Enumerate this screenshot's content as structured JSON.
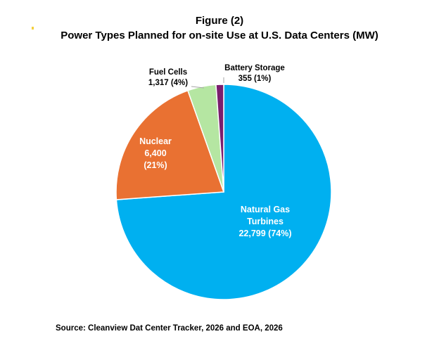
{
  "title_line1": "Figure (2)",
  "title_line2": "Power Types Planned for on-site Use at U.S. Data Centers (MW)",
  "source": "Source: Cleanview Dat Center Tracker, 2026 and EOA, 2026",
  "chart_data": {
    "type": "pie",
    "title": "Power Types Planned for on-site Use at U.S. Data Centers (MW)",
    "unit": "MW",
    "slices": [
      {
        "name": "Natural Gas Turbines",
        "value": 22799,
        "percent": 74,
        "color": "#00b0f0",
        "label_lines": [
          "Natural Gas",
          "Turbines",
          "22,799 (74%)"
        ]
      },
      {
        "name": "Nuclear",
        "value": 6400,
        "percent": 21,
        "color": "#e97132",
        "label_lines": [
          "Nuclear",
          "6,400",
          "(21%)"
        ]
      },
      {
        "name": "Fuel Cells",
        "value": 1317,
        "percent": 4,
        "color": "#b5e6a2",
        "label_lines": [
          "Fuel Cells",
          "1,317 (4%)"
        ]
      },
      {
        "name": "Battery Storage",
        "value": 355,
        "percent": 1,
        "color": "#7a1e6e",
        "label_lines": [
          "Battery Storage",
          "355 (1%)"
        ]
      }
    ]
  }
}
